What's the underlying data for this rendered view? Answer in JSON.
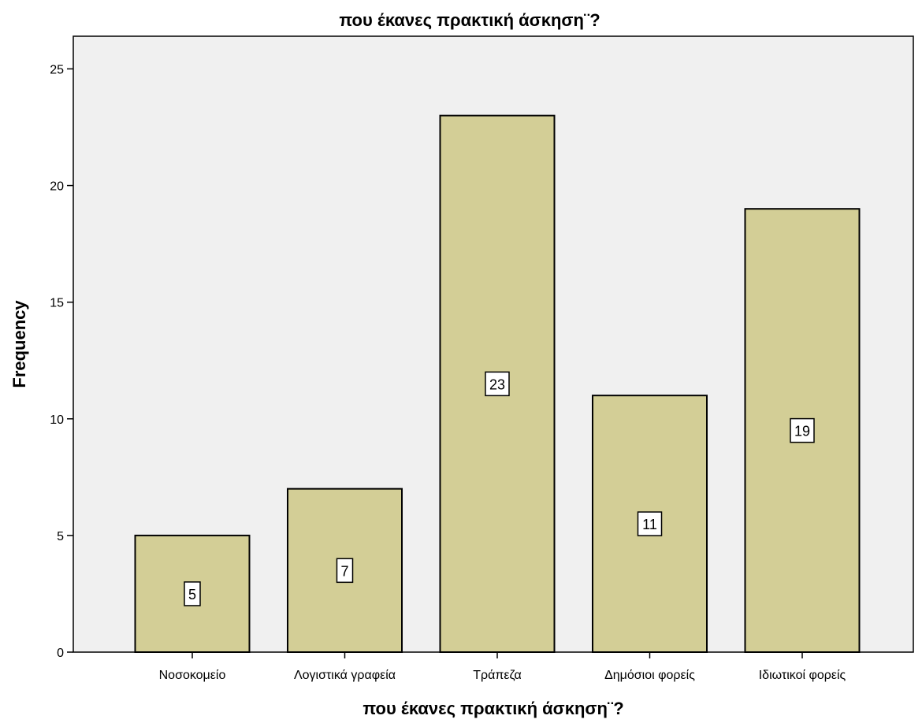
{
  "chart_data": {
    "type": "bar",
    "title": "που έκανες πρακτική άσκηση¨?",
    "xlabel": "που έκανες πρακτική άσκηση¨?",
    "ylabel": "Frequency",
    "categories": [
      "Νοσοκομείο",
      "Λογιστικά γραφεία",
      "Τράπεζα",
      "Δημόσιοι φορείς",
      "Ιδιωτικοί φορείς"
    ],
    "values": [
      5,
      7,
      23,
      11,
      19
    ],
    "data_labels": [
      "5",
      "7",
      "23",
      "11",
      "19"
    ],
    "yticks": [
      "0",
      "5",
      "10",
      "15",
      "20",
      "25"
    ],
    "ylim": [
      0,
      26.4
    ],
    "grid": false,
    "colors": {
      "bar_fill": "#d3ce96",
      "plot_background": "#f0f0f0",
      "axis": "#000000"
    }
  }
}
